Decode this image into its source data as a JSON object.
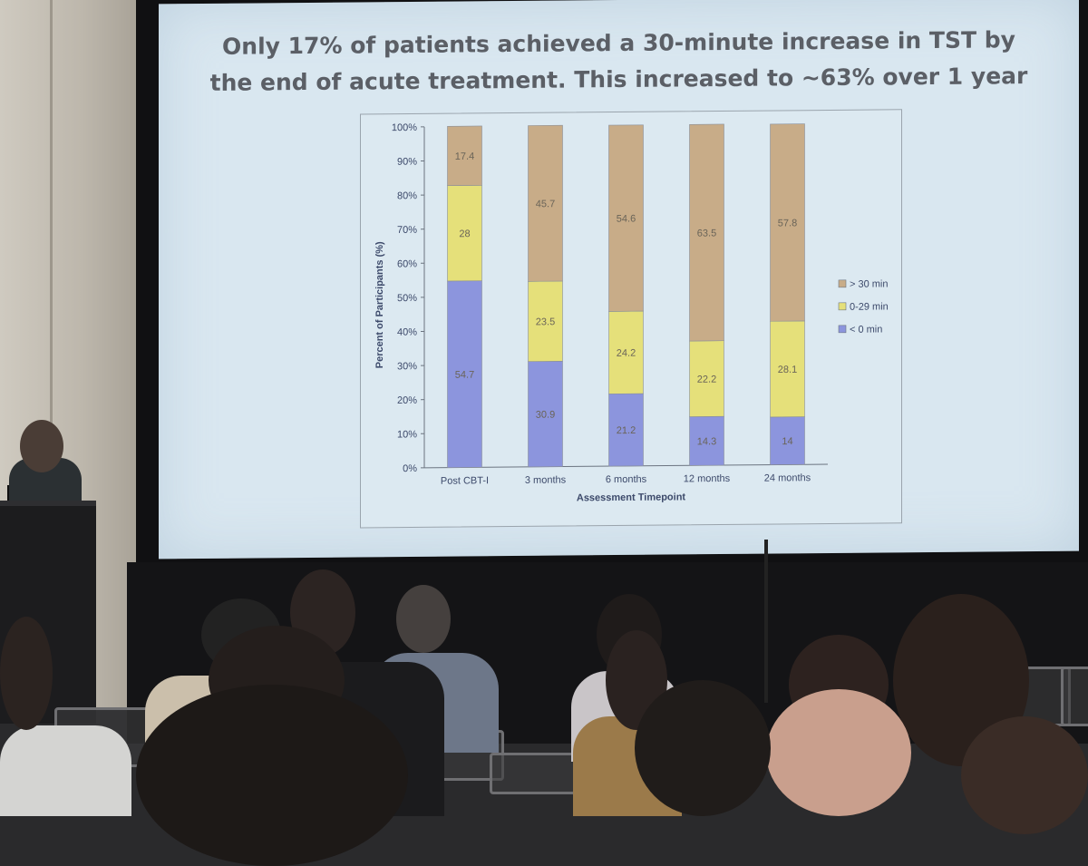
{
  "slide": {
    "title_line1": "Only 17% of patients achieved a 30-minute increase in TST by",
    "title_line2": "the end of acute treatment. This increased to ~63% over 1 year"
  },
  "chart_data": {
    "type": "bar",
    "stacked": true,
    "title": "",
    "xlabel": "Assessment Timepoint",
    "ylabel": "Percent of Participants (%)",
    "ylim": [
      0,
      100
    ],
    "yticks": [
      "0%",
      "10%",
      "20%",
      "30%",
      "40%",
      "50%",
      "60%",
      "70%",
      "80%",
      "90%",
      "100%"
    ],
    "categories": [
      "Post CBT-I",
      "3 months",
      "6 months",
      "12 months",
      "24 months"
    ],
    "series": [
      {
        "name": "< 0 min",
        "color": "#8c95dd",
        "values": [
          54.7,
          30.9,
          21.2,
          14.3,
          14
        ]
      },
      {
        "name": "0-29 min",
        "color": "#e5e07a",
        "values": [
          28,
          23.5,
          24.2,
          22.2,
          28.1
        ]
      },
      {
        "name": "> 30 min",
        "color": "#c8ac88",
        "values": [
          17.4,
          45.7,
          54.6,
          63.5,
          57.8
        ]
      }
    ],
    "legend_position": "right",
    "legend_order": [
      "> 30 min",
      "0-29 min",
      "< 0 min"
    ],
    "grid": false
  }
}
